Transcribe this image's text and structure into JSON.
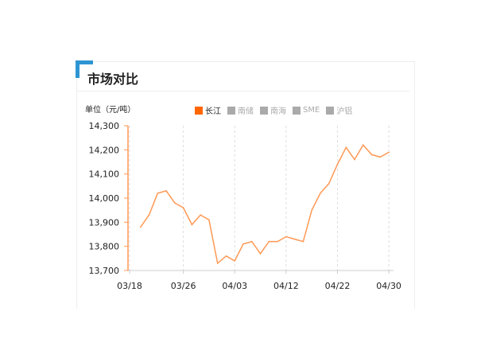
{
  "header": {
    "title": "市场对比",
    "unit": "单位（元/吨）"
  },
  "legend": [
    {
      "label": "长江",
      "active": true,
      "color": "#ff6600"
    },
    {
      "label": "南储",
      "active": false,
      "color": "#aaaaaa"
    },
    {
      "label": "南海",
      "active": false,
      "color": "#aaaaaa"
    },
    {
      "label": "SME",
      "active": false,
      "color": "#aaaaaa"
    },
    {
      "label": "沪铝",
      "active": false,
      "color": "#aaaaaa"
    }
  ],
  "chart_data": {
    "type": "line",
    "ylim": [
      13700,
      14300
    ],
    "yticks": [
      "13,700",
      "13,800",
      "13,900",
      "14,000",
      "14,100",
      "14,200",
      "14,300"
    ],
    "xtick_labels": [
      "03/18",
      "03/26",
      "04/03",
      "04/12",
      "04/22",
      "04/30"
    ],
    "grid": "vertical dashed",
    "series": [
      {
        "name": "长江",
        "color": "#ff9955",
        "values": [
          null,
          13880,
          13930,
          14020,
          14030,
          13980,
          13960,
          13890,
          13930,
          13910,
          13730,
          13760,
          13740,
          13810,
          13820,
          13770,
          13820,
          13820,
          13840,
          13830,
          13820,
          13950,
          14020,
          14060,
          14140,
          14210,
          14160,
          14220,
          14180,
          14170,
          14190
        ]
      }
    ],
    "xtick_index": [
      0,
      6,
      12,
      18,
      24,
      30
    ]
  }
}
